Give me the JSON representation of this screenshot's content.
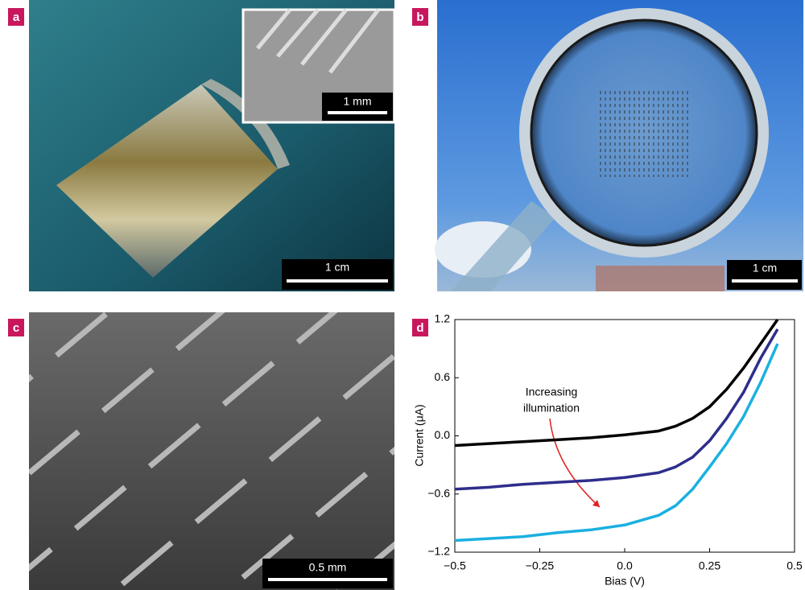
{
  "panels": [
    {
      "label": "a",
      "scale_bar": "1 cm",
      "inset_scale_bar": "1 mm"
    },
    {
      "label": "b",
      "scale_bar": "1 cm"
    },
    {
      "label": "c",
      "scale_bar": "0.5 mm"
    },
    {
      "label": "d"
    }
  ],
  "chart_data": {
    "type": "line",
    "xlabel": "Bias (V)",
    "ylabel": "Current (μA)",
    "annotation": [
      "Increasing",
      "illumination"
    ],
    "x": [
      -0.5,
      -0.4,
      -0.3,
      -0.2,
      -0.1,
      0,
      0.1,
      0.15,
      0.2,
      0.25,
      0.3,
      0.35,
      0.4,
      0.45
    ],
    "series": [
      {
        "color": "#000000",
        "values": [
          -0.1,
          -0.08,
          -0.06,
          -0.04,
          -0.02,
          0.01,
          0.05,
          0.1,
          0.18,
          0.3,
          0.48,
          0.7,
          0.95,
          1.2
        ]
      },
      {
        "color": "#2e2e8c",
        "values": [
          -0.55,
          -0.53,
          -0.5,
          -0.48,
          -0.46,
          -0.43,
          -0.38,
          -0.32,
          -0.22,
          -0.05,
          0.18,
          0.45,
          0.8,
          1.1
        ]
      },
      {
        "color": "#1ab0e0",
        "values": [
          -1.08,
          -1.06,
          -1.04,
          -1.0,
          -0.97,
          -0.92,
          -0.82,
          -0.72,
          -0.55,
          -0.32,
          -0.08,
          0.2,
          0.55,
          0.95
        ]
      }
    ],
    "xlim": [
      -0.5,
      0.5
    ],
    "xticks": [
      {
        "value": -0.5,
        "label": "−0.5"
      },
      {
        "value": -0.25,
        "label": "−0.25"
      },
      {
        "value": 0,
        "label": "0.0"
      },
      0.25,
      0.5
    ],
    "ylim": [
      -1.2,
      1.2
    ],
    "yticks": [
      {
        "value": -1.2,
        "label": "−1.2"
      },
      {
        "value": -0.6,
        "label": "−0.6"
      },
      {
        "value": 0,
        "label": "0.0"
      },
      0.6,
      1.2
    ]
  }
}
